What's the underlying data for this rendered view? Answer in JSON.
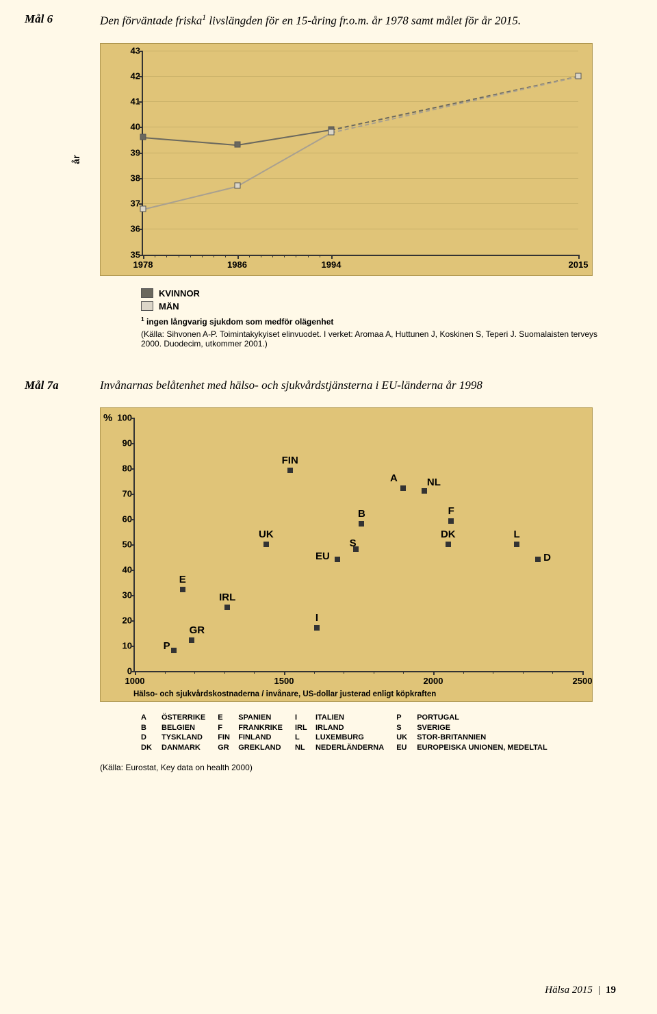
{
  "mal6": {
    "label": "Mål 6",
    "title_pre": "Den förväntade friska",
    "title_post": " livslängden för en 15-åring fr.o.m. år 1978 samt målet för år 2015."
  },
  "chart1": {
    "type": "line",
    "y_axis_label": "år",
    "ylim": [
      35,
      43
    ],
    "yticks": [
      35,
      36,
      37,
      38,
      39,
      40,
      41,
      42,
      43
    ],
    "xlim": [
      1978,
      2015
    ],
    "xticks_major": [
      1978,
      1986,
      1994,
      2015
    ],
    "minor_tick_step": 1,
    "background_color": "#e0c478",
    "grid_color": "#c8b068",
    "line_width": 2,
    "marker_size": 9,
    "series": {
      "kvinnor": {
        "color": "#6a685e",
        "marker_fill": "#6a685e",
        "points": [
          {
            "x": 1978,
            "y": 39.6
          },
          {
            "x": 1986,
            "y": 39.3
          },
          {
            "x": 1994,
            "y": 39.9
          },
          {
            "x": 2015,
            "y": 42.0,
            "projected": true
          }
        ]
      },
      "man": {
        "color": "#a8a090",
        "marker_fill": "#dcd6c8",
        "points": [
          {
            "x": 1978,
            "y": 36.8
          },
          {
            "x": 1986,
            "y": 37.7
          },
          {
            "x": 1994,
            "y": 39.8
          },
          {
            "x": 2015,
            "y": 42.0,
            "projected": true
          }
        ]
      }
    },
    "legend": {
      "kvinnor": "KVINNOR",
      "man": "MÄN"
    },
    "footnote_marker": "1",
    "footnote_text": "ingen långvarig sjukdom som medför olägenhet",
    "source": "(Källa: Sihvonen A-P. Toimintakykyiset elinvuodet. I verket: Aromaa A, Huttunen J, Koskinen S, Teperi J. Suomalaisten terveys 2000. Duodecim, utkommer 2001.)"
  },
  "mal7a": {
    "label": "Mål 7a",
    "title": "Invånarnas belåtenhet med hälso- och sjukvårdstjänsterna i EU-länderna år 1998"
  },
  "chart2": {
    "type": "scatter",
    "pct_symbol": "%",
    "ylim": [
      0,
      100
    ],
    "yticks": [
      0,
      10,
      20,
      30,
      40,
      50,
      60,
      70,
      80,
      90,
      100
    ],
    "xlim": [
      1000,
      2500
    ],
    "xticks_major": [
      1000,
      1500,
      2000,
      2500
    ],
    "xminors": [
      1100,
      1200,
      1300,
      1400,
      1600,
      1700,
      1800,
      1900,
      2100,
      2200,
      2300,
      2400
    ],
    "x_axis_caption": "Hälso- och sjukvårdskostnaderna / invånare, US-dollar justerad enligt köpkraften",
    "background_color": "#e0c478",
    "marker_color": "#333333",
    "label_fontsize": 15,
    "points": [
      {
        "code": "FIN",
        "x": 1520,
        "y": 79
      },
      {
        "code": "A",
        "x": 1900,
        "y": 72
      },
      {
        "code": "NL",
        "x": 1970,
        "y": 71
      },
      {
        "code": "B",
        "x": 1760,
        "y": 58
      },
      {
        "code": "F",
        "x": 2060,
        "y": 59
      },
      {
        "code": "UK",
        "x": 1440,
        "y": 50
      },
      {
        "code": "DK",
        "x": 2050,
        "y": 50
      },
      {
        "code": "L",
        "x": 2280,
        "y": 50
      },
      {
        "code": "S",
        "x": 1740,
        "y": 48
      },
      {
        "code": "EU",
        "x": 1680,
        "y": 44
      },
      {
        "code": "D",
        "x": 2350,
        "y": 44
      },
      {
        "code": "E",
        "x": 1160,
        "y": 32
      },
      {
        "code": "IRL",
        "x": 1310,
        "y": 25
      },
      {
        "code": "I",
        "x": 1610,
        "y": 17
      },
      {
        "code": "GR",
        "x": 1190,
        "y": 12
      },
      {
        "code": "P",
        "x": 1130,
        "y": 8
      }
    ],
    "country_legend": [
      [
        [
          "A",
          "ÖSTERRIKE"
        ],
        [
          "B",
          "BELGIEN"
        ],
        [
          "D",
          "TYSKLAND"
        ],
        [
          "DK",
          "DANMARK"
        ]
      ],
      [
        [
          "E",
          "SPANIEN"
        ],
        [
          "F",
          "FRANKRIKE"
        ],
        [
          "FIN",
          "FINLAND"
        ],
        [
          "GR",
          "GREKLAND"
        ]
      ],
      [
        [
          "I",
          "ITALIEN"
        ],
        [
          "IRL",
          "IRLAND"
        ],
        [
          "L",
          "LUXEMBURG"
        ],
        [
          "NL",
          "NEDERLÄNDERNA"
        ]
      ],
      [
        [
          "P",
          "PORTUGAL"
        ],
        [
          "S",
          "SVERIGE"
        ],
        [
          "UK",
          "STOR-BRITANNIEN"
        ],
        [
          "EU",
          "EUROPEISKA UNIONEN, MEDELTAL"
        ]
      ]
    ],
    "source": "(Källa: Eurostat, Key data on health 2000)"
  },
  "footer": {
    "text": "Hälsa 2015",
    "sep": "|",
    "page": "19"
  }
}
